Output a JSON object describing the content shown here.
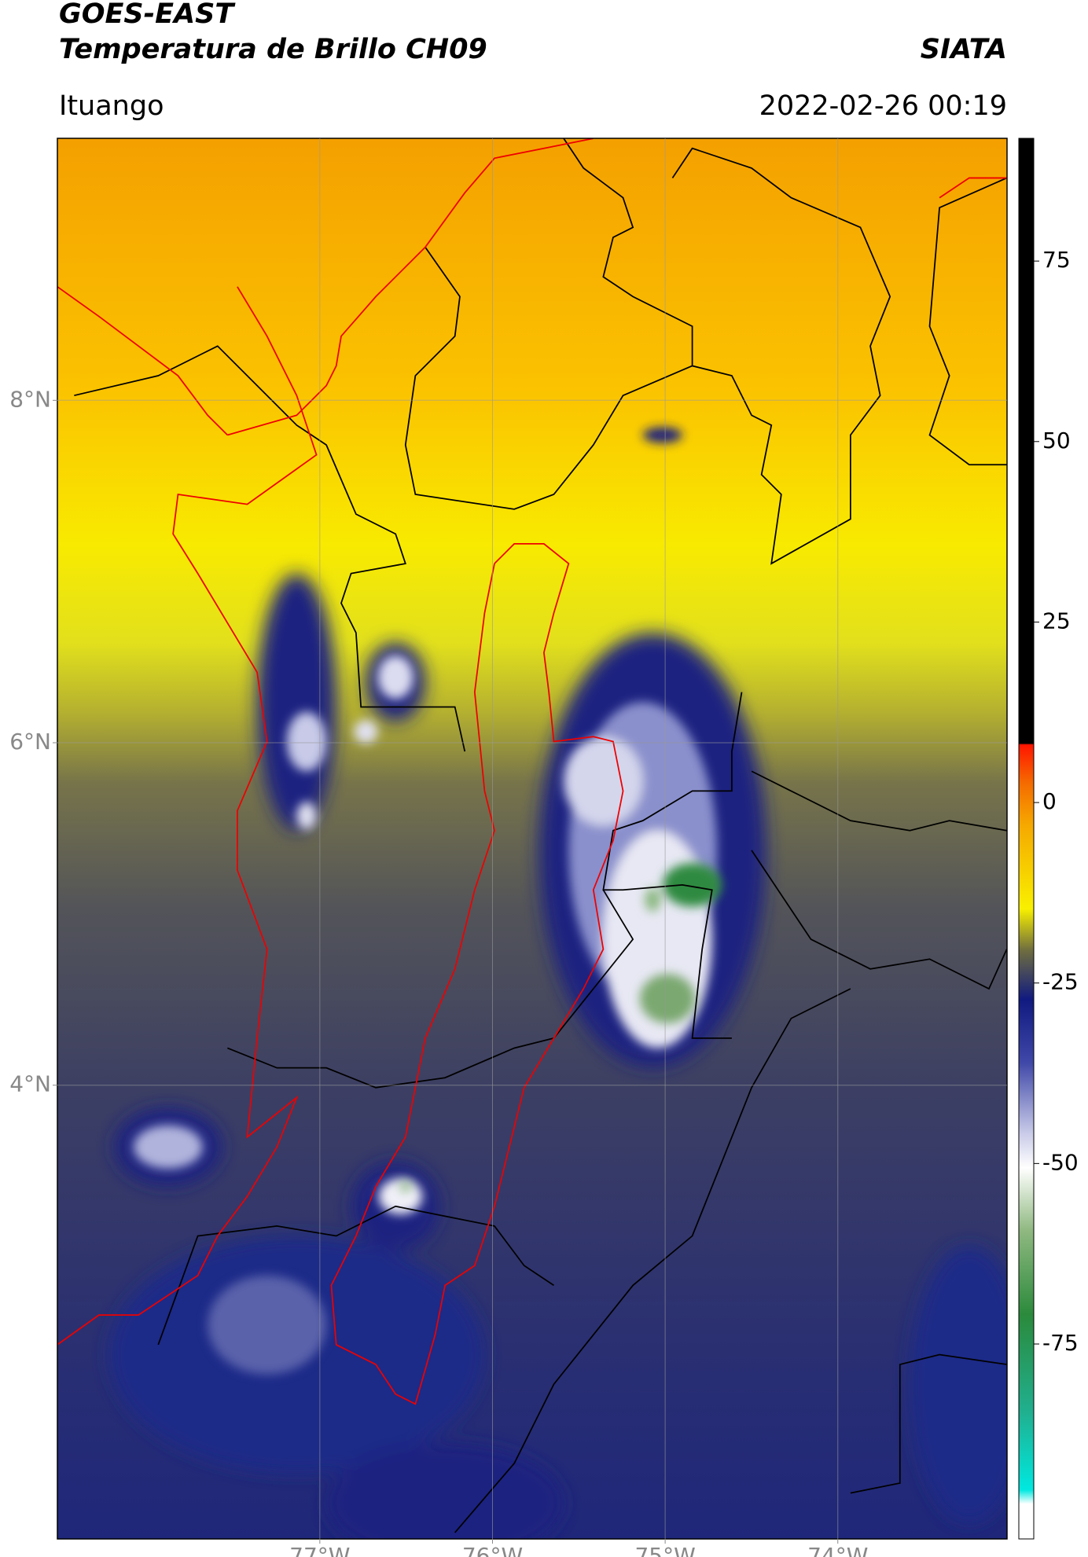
{
  "header": {
    "title": "GOES-EAST",
    "subtitle": "Temperatura de Brillo CH09",
    "source": "SIATA",
    "location": "Ituango",
    "datetime": "2022-02-26 00:19"
  },
  "map": {
    "xlim": [
      -78.52,
      -73.02
    ],
    "ylim": [
      1.35,
      9.53
    ],
    "xticks": [
      {
        "value": -77,
        "label": "77°W"
      },
      {
        "value": -76,
        "label": "76°W"
      },
      {
        "value": -75,
        "label": "75°W"
      },
      {
        "value": -74,
        "label": "74°W"
      }
    ],
    "yticks": [
      {
        "value": 4,
        "label": "4°N"
      },
      {
        "value": 6,
        "label": "6°N"
      },
      {
        "value": 8,
        "label": "8°N"
      }
    ],
    "grid": true
  },
  "colorbar": {
    "lim": [
      -102,
      92
    ],
    "ticks": [
      -75,
      -50,
      -25,
      0,
      25,
      50,
      75
    ]
  }
}
